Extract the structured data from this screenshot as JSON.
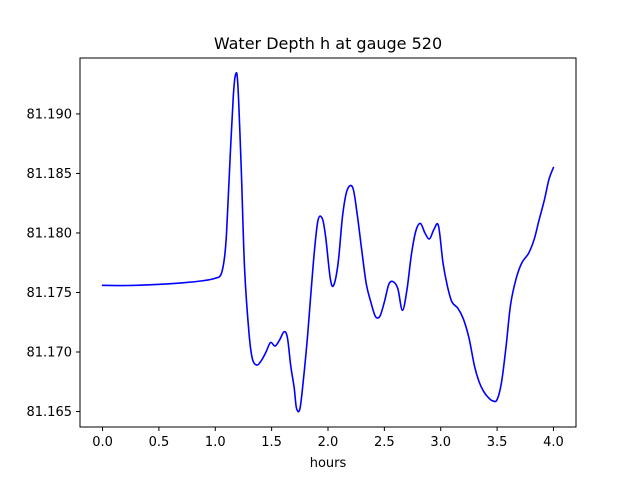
{
  "chart_data": {
    "type": "line",
    "title": "Water Depth h at gauge 520",
    "xlabel": "hours",
    "ylabel": "",
    "xlim": [
      -0.2,
      4.2
    ],
    "ylim": [
      81.1637,
      81.1947
    ],
    "grid": false,
    "xticks": [
      0.0,
      0.5,
      1.0,
      1.5,
      2.0,
      2.5,
      3.0,
      3.5,
      4.0
    ],
    "xtick_labels": [
      "0.0",
      "0.5",
      "1.0",
      "1.5",
      "2.0",
      "2.5",
      "3.0",
      "3.5",
      "4.0"
    ],
    "yticks": [
      81.165,
      81.17,
      81.175,
      81.18,
      81.185,
      81.19
    ],
    "ytick_labels": [
      "81.165",
      "81.170",
      "81.175",
      "81.180",
      "81.185",
      "81.190"
    ],
    "series": [
      {
        "color": "#0000ff",
        "x": [
          0.0,
          0.3,
          0.7,
          0.9,
          1.0,
          1.05,
          1.08,
          1.1,
          1.13,
          1.16,
          1.18,
          1.2,
          1.23,
          1.26,
          1.3,
          1.33,
          1.37,
          1.41,
          1.45,
          1.49,
          1.53,
          1.57,
          1.61,
          1.64,
          1.67,
          1.7,
          1.72,
          1.75,
          1.78,
          1.82,
          1.87,
          1.91,
          1.95,
          1.98,
          2.02,
          2.05,
          2.09,
          2.13,
          2.17,
          2.22,
          2.26,
          2.3,
          2.34,
          2.38,
          2.42,
          2.46,
          2.5,
          2.54,
          2.58,
          2.62,
          2.66,
          2.7,
          2.74,
          2.78,
          2.82,
          2.86,
          2.9,
          2.94,
          2.98,
          3.02,
          3.06,
          3.1,
          3.15,
          3.2,
          3.25,
          3.3,
          3.34,
          3.38,
          3.42,
          3.46,
          3.5,
          3.54,
          3.58,
          3.62,
          3.67,
          3.72,
          3.78,
          3.83,
          3.87,
          3.92,
          3.96,
          4.0
        ],
        "y": [
          81.1756,
          81.1756,
          81.1758,
          81.176,
          81.1762,
          81.1765,
          81.1778,
          81.18,
          81.186,
          81.1915,
          81.1933,
          81.1925,
          81.1855,
          81.177,
          81.1715,
          81.1694,
          81.1689,
          81.1693,
          81.17,
          81.1708,
          81.1705,
          81.171,
          81.1717,
          81.1712,
          81.1688,
          81.167,
          81.1653,
          81.1652,
          81.1675,
          81.1715,
          81.1775,
          81.181,
          81.1812,
          81.1796,
          81.1762,
          81.1756,
          81.1775,
          81.1815,
          81.1836,
          81.1838,
          81.1815,
          81.1785,
          81.1757,
          81.1742,
          81.173,
          81.173,
          81.1742,
          81.1757,
          81.1759,
          81.1753,
          81.1735,
          81.1752,
          81.1782,
          81.1802,
          81.1808,
          81.18,
          81.1795,
          81.1803,
          81.1806,
          81.1775,
          81.1755,
          81.1742,
          81.1737,
          81.1728,
          81.1712,
          81.1688,
          81.1675,
          81.1667,
          81.1662,
          81.1659,
          81.166,
          81.1675,
          81.1705,
          81.174,
          81.1762,
          81.1775,
          81.1783,
          81.1795,
          81.181,
          81.1828,
          81.1845,
          81.1855
        ]
      }
    ]
  }
}
